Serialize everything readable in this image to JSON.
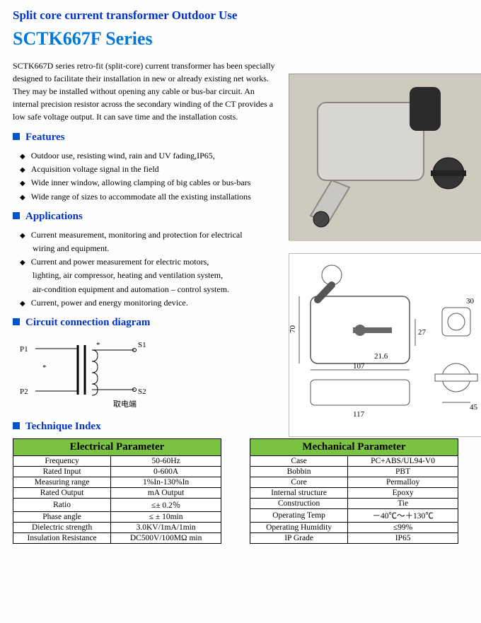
{
  "title_small": "Split core current transformer Outdoor Use",
  "title_large": "SCTK667F Series",
  "description": "SCTK667D series retro-fit (split-core) current transformer has been specially designed to facilitate their installation in new or already existing net works. They may be installed without opening any cable or bus-bar circuit. An internal precision resistor across the secondary winding of the CT provides a low safe voltage output. It can save time and the installation costs.",
  "sections": {
    "features_head": "Features",
    "features": [
      "Outdoor use, resisting wind, rain and UV fading,IP65,",
      "Acquisition voltage signal in the field",
      "Wide inner window, allowing clamping of big cables or bus-bars",
      "Wide range of sizes to accommodate all the existing installations"
    ],
    "applications_head": "Applications",
    "applications": [
      "Current measurement, monitoring and protection for electrical",
      "wiring and equipment.",
      "Current and power measurement for electric motors,",
      "lighting, air compressor, heating and ventilation system,",
      "air-condition equipment and automation – control system.",
      "Current, power and energy monitoring device."
    ],
    "app_cont": [
      false,
      true,
      false,
      true,
      true,
      false
    ],
    "circuit_head": "Circuit connection diagram",
    "technique_head": "Technique Index"
  },
  "circuit": {
    "p1": "P1",
    "p2": "P2",
    "s1": "S1",
    "s2": "S2",
    "cn_label": "取电端"
  },
  "dimensions": {
    "d70": "70",
    "d27": "27",
    "d21_6": "21.6",
    "d107": "107",
    "d117": "117",
    "d30": "30",
    "d45": "45"
  },
  "tables": {
    "electrical": {
      "header": "Electrical Parameter",
      "rows": [
        [
          "Frequency",
          "50-60Hz"
        ],
        [
          "Rated Input",
          "0-600A"
        ],
        [
          "Measuring range",
          "1%In-130%In"
        ],
        [
          "Rated Output",
          "mA Output"
        ],
        [
          "Ratio",
          "≤± 0.2％"
        ],
        [
          "Phase angle",
          "≤ ± 10min"
        ],
        [
          "Dielectric strength",
          "3.0KV/1mA/1min"
        ],
        [
          "Insulation Resistance",
          "DC500V/100MΩ min"
        ]
      ]
    },
    "mechanical": {
      "header": "Mechanical Parameter",
      "rows": [
        [
          "Case",
          "PC+ABS/UL94-V0"
        ],
        [
          "Bobbin",
          "PBT"
        ],
        [
          "Core",
          "Permalloy"
        ],
        [
          "Internal structure",
          "Epoxy"
        ],
        [
          "Construction",
          "Tie"
        ],
        [
          "Operating Temp",
          "－40℃～＋130℃"
        ],
        [
          "Operating Humidity",
          "≤99%"
        ],
        [
          "IP Grade",
          "IP65"
        ]
      ]
    }
  },
  "colors": {
    "blue_title": "#0033cc",
    "blue_series": "#0077dd",
    "green_header": "#7cc242",
    "border": "#000000",
    "bg": "#fefefe"
  }
}
